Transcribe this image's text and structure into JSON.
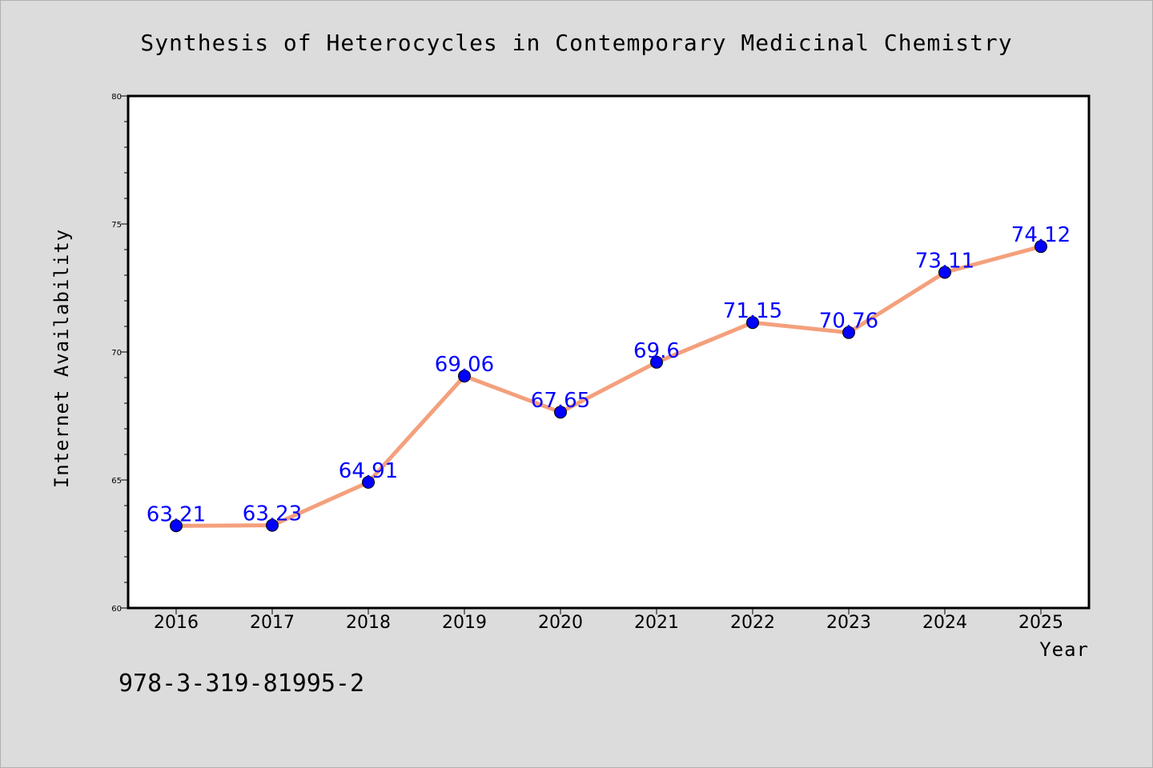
{
  "chart_data": {
    "type": "line",
    "title": "Synthesis of Heterocycles in Contemporary Medicinal Chemistry",
    "xlabel": "Year",
    "ylabel": "Internet Availability",
    "x": [
      "2016",
      "2017",
      "2018",
      "2019",
      "2020",
      "2021",
      "2022",
      "2023",
      "2024",
      "2025"
    ],
    "series": [
      {
        "values": [
          63.21,
          63.23,
          64.91,
          69.06,
          67.65,
          69.6,
          71.15,
          70.76,
          73.11,
          74.12
        ],
        "data_labels": [
          "63.21",
          "63.23",
          "64.91",
          "69.06",
          "67.65",
          "69.6",
          "71.15",
          "70.76",
          "73.11",
          "74.12"
        ],
        "line_color": "#f4a07c",
        "marker_color": "#0000ff"
      }
    ],
    "ylim": [
      60,
      80
    ],
    "yticks": [
      "60",
      "65",
      "70",
      "75",
      "80"
    ],
    "grid": false
  },
  "footer": {
    "isbn": "978-3-319-81995-2"
  },
  "colors": {
    "background": "#dcdcdc",
    "plot_area": "#ffffff",
    "line": "#f4a07c",
    "marker": "#0000ff",
    "data_label": "#0000ff"
  }
}
